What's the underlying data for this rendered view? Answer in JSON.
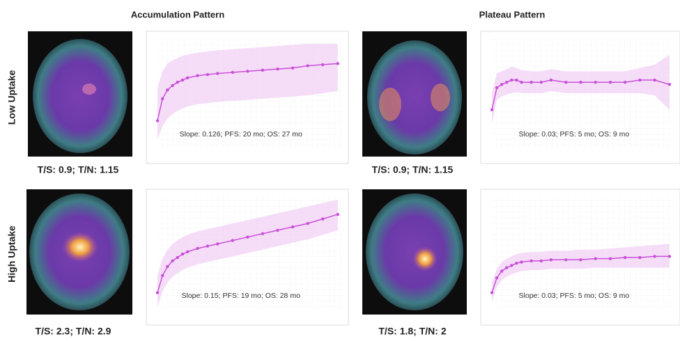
{
  "columns": [
    "Accumulation Pattern",
    "Plateau Pattern"
  ],
  "rows": [
    "Low Uptake",
    "High Uptake"
  ],
  "image_captions": [
    "T/S: 0.9; T/N: 1.15",
    "T/S: 0.9; T/N: 1.15",
    "T/S: 2.3; T/N: 2.9",
    "T/S: 1.8; T/N: 2"
  ],
  "chart_data": [
    {
      "type": "line",
      "annotation": "Slope: 0.126; PFS: 20 mo; OS: 27 mo",
      "color": "#c94fd8",
      "band_color": "#f3d4f6",
      "xlim": [
        0,
        37
      ],
      "ylim": [
        0,
        1
      ],
      "x": [
        0,
        1,
        2,
        3,
        4,
        5,
        6,
        8,
        10,
        12,
        15,
        18,
        21,
        24,
        27,
        30,
        33,
        36
      ],
      "values": [
        0.25,
        0.45,
        0.53,
        0.57,
        0.6,
        0.62,
        0.64,
        0.66,
        0.67,
        0.68,
        0.69,
        0.7,
        0.71,
        0.72,
        0.73,
        0.75,
        0.76,
        0.77
      ],
      "upper": [
        0.55,
        0.7,
        0.77,
        0.8,
        0.82,
        0.84,
        0.85,
        0.87,
        0.88,
        0.89,
        0.9,
        0.91,
        0.92,
        0.93,
        0.94,
        0.95,
        0.95,
        0.95
      ],
      "lower": [
        0.08,
        0.2,
        0.27,
        0.31,
        0.34,
        0.36,
        0.38,
        0.4,
        0.41,
        0.42,
        0.43,
        0.44,
        0.45,
        0.46,
        0.47,
        0.48,
        0.5,
        0.52
      ]
    },
    {
      "type": "line",
      "annotation": "Slope: 0.03; PFS: 5 mo; OS: 9 mo",
      "color": "#c94fd8",
      "band_color": "#f3d4f6",
      "xlim": [
        0,
        37
      ],
      "ylim": [
        0,
        1
      ],
      "x": [
        0,
        1,
        2,
        3,
        4,
        5,
        6,
        8,
        10,
        12,
        15,
        18,
        21,
        24,
        27,
        30,
        33,
        36
      ],
      "values": [
        0.35,
        0.55,
        0.58,
        0.6,
        0.62,
        0.62,
        0.6,
        0.6,
        0.6,
        0.62,
        0.6,
        0.6,
        0.6,
        0.6,
        0.6,
        0.62,
        0.62,
        0.58
      ],
      "upper": [
        0.5,
        0.68,
        0.7,
        0.72,
        0.74,
        0.73,
        0.71,
        0.7,
        0.7,
        0.72,
        0.7,
        0.7,
        0.7,
        0.7,
        0.7,
        0.73,
        0.76,
        0.85
      ],
      "lower": [
        0.22,
        0.44,
        0.47,
        0.49,
        0.5,
        0.51,
        0.5,
        0.5,
        0.5,
        0.52,
        0.5,
        0.5,
        0.5,
        0.5,
        0.5,
        0.5,
        0.48,
        0.35
      ]
    },
    {
      "type": "line",
      "annotation": "Slope: 0.15; PFS: 19 mo; OS: 28 mo",
      "color": "#c94fd8",
      "band_color": "#f3d4f6",
      "xlim": [
        0,
        37
      ],
      "ylim": [
        0,
        1
      ],
      "x": [
        0,
        1,
        2,
        3,
        4,
        5,
        6,
        8,
        10,
        12,
        15,
        18,
        21,
        24,
        27,
        30,
        33,
        36
      ],
      "values": [
        0.15,
        0.3,
        0.38,
        0.43,
        0.46,
        0.49,
        0.51,
        0.54,
        0.56,
        0.58,
        0.61,
        0.64,
        0.67,
        0.7,
        0.73,
        0.76,
        0.8,
        0.84
      ],
      "upper": [
        0.3,
        0.45,
        0.53,
        0.58,
        0.61,
        0.64,
        0.66,
        0.69,
        0.71,
        0.73,
        0.76,
        0.79,
        0.82,
        0.85,
        0.88,
        0.91,
        0.94,
        0.97
      ],
      "lower": [
        0.02,
        0.16,
        0.24,
        0.29,
        0.32,
        0.35,
        0.37,
        0.4,
        0.42,
        0.44,
        0.47,
        0.5,
        0.53,
        0.56,
        0.59,
        0.62,
        0.66,
        0.7
      ]
    },
    {
      "type": "line",
      "annotation": "Slope: 0.03; PFS: 5 mo; OS: 9 mo",
      "color": "#c94fd8",
      "band_color": "#f3d4f6",
      "xlim": [
        0,
        37
      ],
      "ylim": [
        0,
        1
      ],
      "x": [
        0,
        1,
        2,
        3,
        4,
        5,
        6,
        8,
        10,
        12,
        15,
        18,
        21,
        24,
        27,
        30,
        33,
        36
      ],
      "values": [
        0.15,
        0.28,
        0.34,
        0.37,
        0.39,
        0.41,
        0.42,
        0.43,
        0.43,
        0.44,
        0.44,
        0.44,
        0.45,
        0.45,
        0.46,
        0.46,
        0.47,
        0.47
      ],
      "upper": [
        0.24,
        0.36,
        0.42,
        0.45,
        0.47,
        0.49,
        0.5,
        0.51,
        0.51,
        0.52,
        0.52,
        0.53,
        0.53,
        0.54,
        0.55,
        0.56,
        0.57,
        0.58
      ],
      "lower": [
        0.07,
        0.2,
        0.26,
        0.29,
        0.31,
        0.33,
        0.34,
        0.35,
        0.35,
        0.36,
        0.36,
        0.36,
        0.37,
        0.37,
        0.37,
        0.37,
        0.37,
        0.37
      ]
    }
  ]
}
